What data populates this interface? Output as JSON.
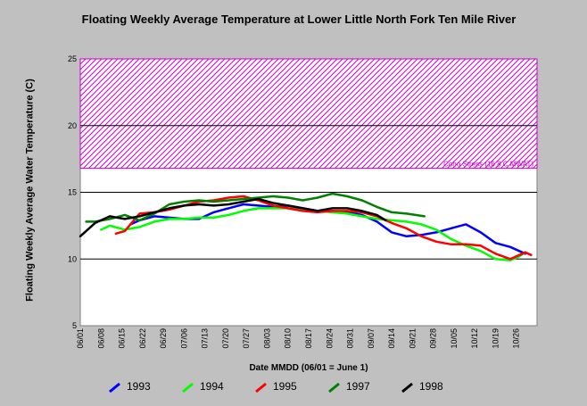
{
  "chart_data": {
    "type": "line",
    "title": "Floating Weekly Average Temperature at Lower Little North Fork Ten Mile River",
    "xlabel": "Date MMDD (06/01 = June 1)",
    "ylabel": "Floating Weekly Average Water Temperature (C)",
    "ylim": [
      5,
      25
    ],
    "yticks": [
      5,
      10,
      15,
      20,
      25
    ],
    "x_tick_labels": [
      "06/01",
      "06/08",
      "06/15",
      "06/22",
      "06/29",
      "07/06",
      "07/13",
      "07/20",
      "07/27",
      "08/03",
      "08/10",
      "08/17",
      "08/24",
      "08/31",
      "09/07",
      "09/14",
      "09/21",
      "09/28",
      "10/05",
      "10/12",
      "10/19",
      "10/26"
    ],
    "grid": "horizontal",
    "threshold_band": {
      "label": "Coho Stress (16.8 C MWAT)",
      "from": 16.8,
      "to": 25,
      "color": "#cc00cc"
    },
    "series": [
      {
        "name": "1993",
        "color": "#0000ff",
        "points": [
          [
            17,
            12.6
          ],
          [
            20,
            12.9
          ],
          [
            25,
            13.2
          ],
          [
            30,
            13.1
          ],
          [
            35,
            13.0
          ],
          [
            40,
            13.0
          ],
          [
            45,
            13.5
          ],
          [
            50,
            13.8
          ],
          [
            55,
            14.1
          ],
          [
            60,
            14.0
          ],
          [
            65,
            13.9
          ],
          [
            70,
            14.0
          ],
          [
            75,
            13.8
          ],
          [
            80,
            13.6
          ],
          [
            85,
            13.6
          ],
          [
            90,
            13.5
          ],
          [
            95,
            13.3
          ],
          [
            100,
            12.8
          ],
          [
            105,
            12.0
          ],
          [
            110,
            11.7
          ],
          [
            115,
            11.8
          ],
          [
            120,
            12.0
          ],
          [
            125,
            12.3
          ],
          [
            130,
            12.6
          ],
          [
            135,
            12.0
          ],
          [
            140,
            11.2
          ],
          [
            145,
            10.9
          ],
          [
            150,
            10.4
          ]
        ]
      },
      {
        "name": "1994",
        "color": "#00ff00",
        "points": [
          [
            7,
            12.2
          ],
          [
            10,
            12.5
          ],
          [
            15,
            12.2
          ],
          [
            20,
            12.4
          ],
          [
            25,
            12.8
          ],
          [
            30,
            13.0
          ],
          [
            35,
            13.0
          ],
          [
            40,
            13.1
          ],
          [
            45,
            13.1
          ],
          [
            50,
            13.3
          ],
          [
            55,
            13.6
          ],
          [
            60,
            13.8
          ],
          [
            65,
            13.8
          ],
          [
            70,
            13.8
          ],
          [
            75,
            13.7
          ],
          [
            80,
            13.6
          ],
          [
            85,
            13.5
          ],
          [
            90,
            13.4
          ],
          [
            95,
            13.2
          ],
          [
            100,
            13.0
          ],
          [
            105,
            12.9
          ],
          [
            110,
            12.8
          ],
          [
            115,
            12.6
          ],
          [
            120,
            12.2
          ],
          [
            125,
            11.5
          ],
          [
            130,
            11.0
          ],
          [
            135,
            10.6
          ],
          [
            140,
            10.0
          ],
          [
            145,
            9.9
          ],
          [
            148,
            10.2
          ],
          [
            150,
            10.5
          ]
        ]
      },
      {
        "name": "1995",
        "color": "#ff0000",
        "points": [
          [
            12,
            11.9
          ],
          [
            15,
            12.1
          ],
          [
            20,
            13.4
          ],
          [
            25,
            13.5
          ],
          [
            30,
            13.7
          ],
          [
            35,
            14.0
          ],
          [
            40,
            14.3
          ],
          [
            45,
            14.4
          ],
          [
            50,
            14.6
          ],
          [
            55,
            14.7
          ],
          [
            60,
            14.4
          ],
          [
            65,
            14.0
          ],
          [
            70,
            13.8
          ],
          [
            75,
            13.6
          ],
          [
            80,
            13.5
          ],
          [
            85,
            13.6
          ],
          [
            90,
            13.6
          ],
          [
            95,
            13.5
          ],
          [
            100,
            13.2
          ],
          [
            105,
            12.7
          ],
          [
            110,
            12.3
          ],
          [
            115,
            11.7
          ],
          [
            120,
            11.3
          ],
          [
            125,
            11.1
          ],
          [
            130,
            11.1
          ],
          [
            135,
            11.0
          ],
          [
            140,
            10.4
          ],
          [
            145,
            10.0
          ],
          [
            150,
            10.5
          ],
          [
            152,
            10.3
          ]
        ]
      },
      {
        "name": "1997",
        "color": "#008000",
        "points": [
          [
            2,
            12.8
          ],
          [
            5,
            12.8
          ],
          [
            10,
            13.0
          ],
          [
            15,
            13.3
          ],
          [
            20,
            12.9
          ],
          [
            25,
            13.4
          ],
          [
            30,
            14.1
          ],
          [
            35,
            14.3
          ],
          [
            40,
            14.4
          ],
          [
            45,
            14.3
          ],
          [
            50,
            14.4
          ],
          [
            55,
            14.5
          ],
          [
            60,
            14.6
          ],
          [
            65,
            14.7
          ],
          [
            70,
            14.6
          ],
          [
            75,
            14.4
          ],
          [
            80,
            14.6
          ],
          [
            85,
            14.9
          ],
          [
            90,
            14.7
          ],
          [
            95,
            14.4
          ],
          [
            100,
            13.9
          ],
          [
            105,
            13.5
          ],
          [
            110,
            13.4
          ],
          [
            116,
            13.2
          ]
        ]
      },
      {
        "name": "1998",
        "color": "#000000",
        "points": [
          [
            0,
            11.7
          ],
          [
            5,
            12.7
          ],
          [
            10,
            13.2
          ],
          [
            15,
            13.0
          ],
          [
            20,
            13.2
          ],
          [
            25,
            13.5
          ],
          [
            30,
            13.8
          ],
          [
            35,
            14.0
          ],
          [
            40,
            14.1
          ],
          [
            45,
            14.0
          ],
          [
            50,
            14.1
          ],
          [
            55,
            14.3
          ],
          [
            60,
            14.5
          ],
          [
            65,
            14.2
          ],
          [
            70,
            14.0
          ],
          [
            75,
            13.8
          ],
          [
            80,
            13.6
          ],
          [
            85,
            13.8
          ],
          [
            90,
            13.8
          ],
          [
            95,
            13.6
          ],
          [
            100,
            13.3
          ],
          [
            103,
            12.9
          ]
        ]
      }
    ]
  }
}
